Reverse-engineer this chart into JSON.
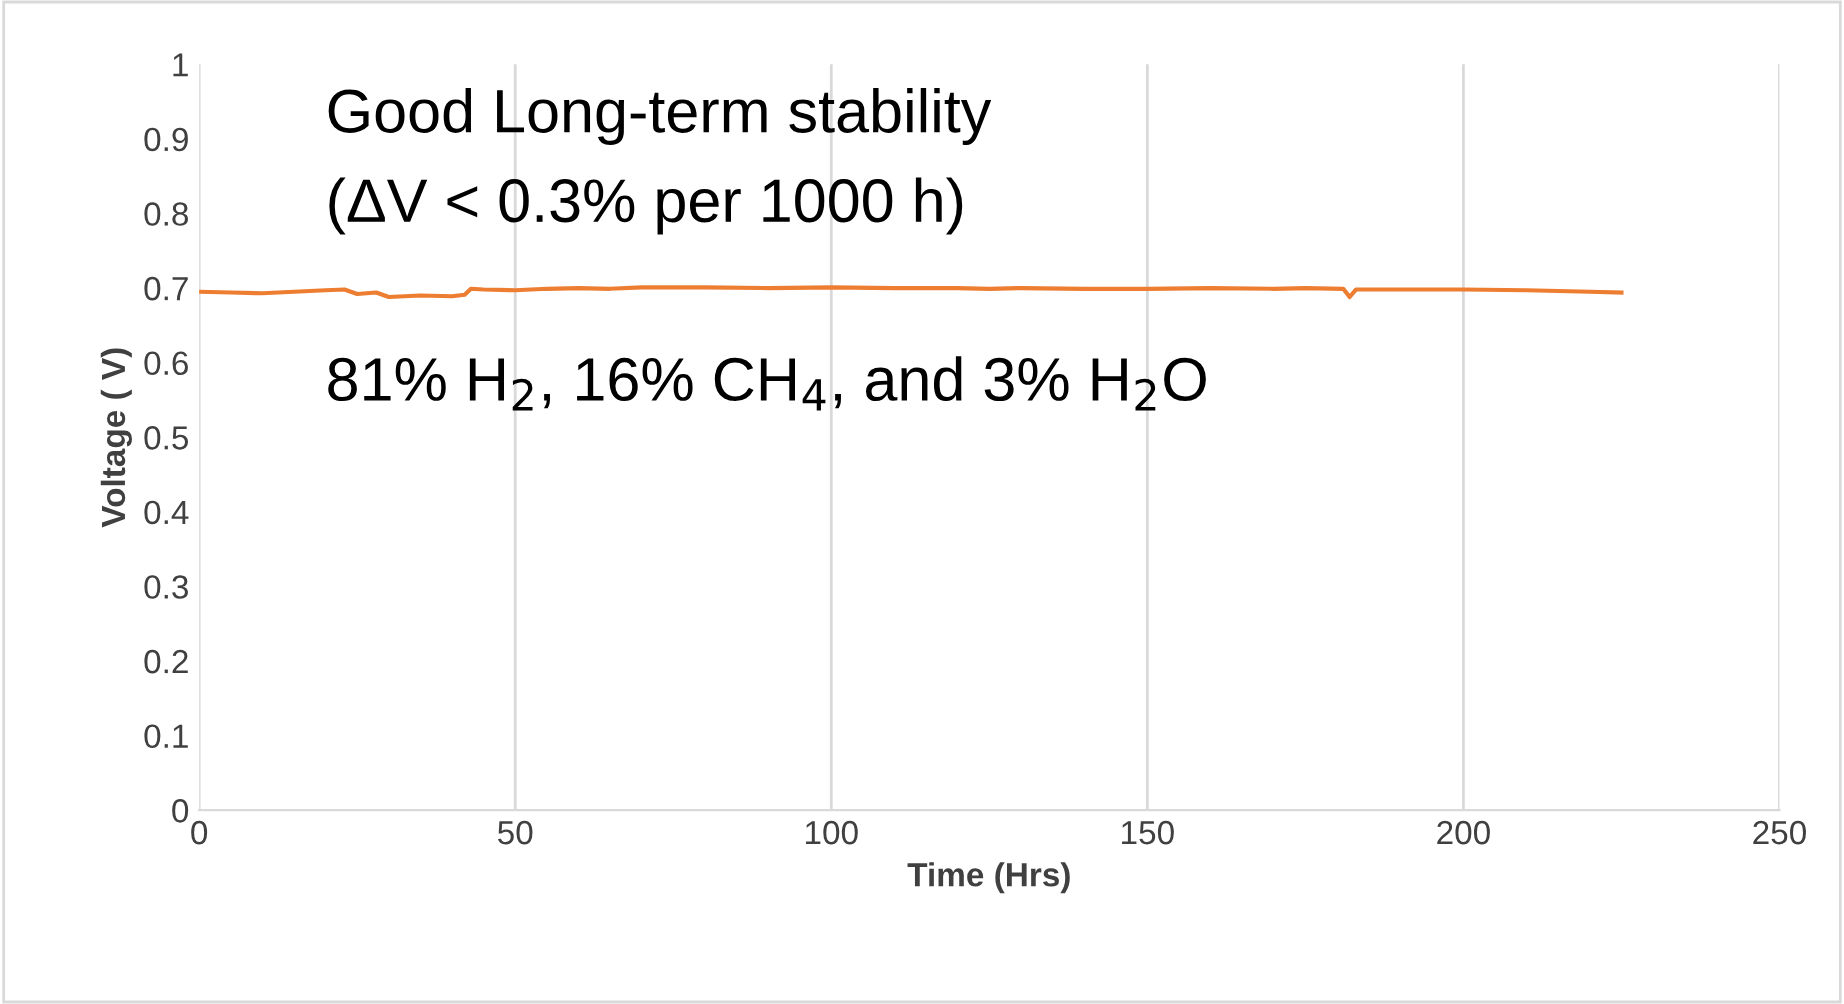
{
  "chart_data": {
    "type": "line",
    "xlabel": "Time (Hrs)",
    "ylabel": "Voltage ( V)",
    "annotations": [
      "Good Long-term stability",
      "(ΔV < 0.3% per 1000 h)",
      "81% H$_{2}$, 16% CH$_{4}$, and 3% H$_{2}$O"
    ],
    "series": [
      {
        "color": "#ed7d31",
        "x": [
          0,
          5,
          10,
          15,
          20,
          23,
          25,
          28,
          30,
          35,
          40,
          42,
          43,
          45,
          50,
          55,
          60,
          65,
          70,
          75,
          80,
          90,
          100,
          110,
          120,
          125,
          130,
          140,
          150,
          160,
          170,
          175,
          181,
          182,
          183,
          190,
          200,
          210,
          220,
          225
        ],
        "values": [
          0.695,
          0.694,
          0.693,
          0.695,
          0.697,
          0.698,
          0.692,
          0.694,
          0.688,
          0.69,
          0.689,
          0.691,
          0.699,
          0.698,
          0.697,
          0.699,
          0.7,
          0.699,
          0.701,
          0.701,
          0.701,
          0.7,
          0.701,
          0.7,
          0.7,
          0.699,
          0.7,
          0.699,
          0.699,
          0.7,
          0.699,
          0.7,
          0.699,
          0.688,
          0.698,
          0.698,
          0.698,
          0.697,
          0.695,
          0.694
        ]
      }
    ],
    "xlim": [
      0,
      250
    ],
    "xticks": [
      0,
      50,
      100,
      150,
      200,
      250
    ],
    "ylim": [
      0,
      1
    ],
    "yticks": [
      0,
      0.1,
      0.2,
      0.3,
      0.4,
      0.5,
      0.6,
      0.7,
      0.8,
      0.9,
      1
    ],
    "grid": "x"
  }
}
